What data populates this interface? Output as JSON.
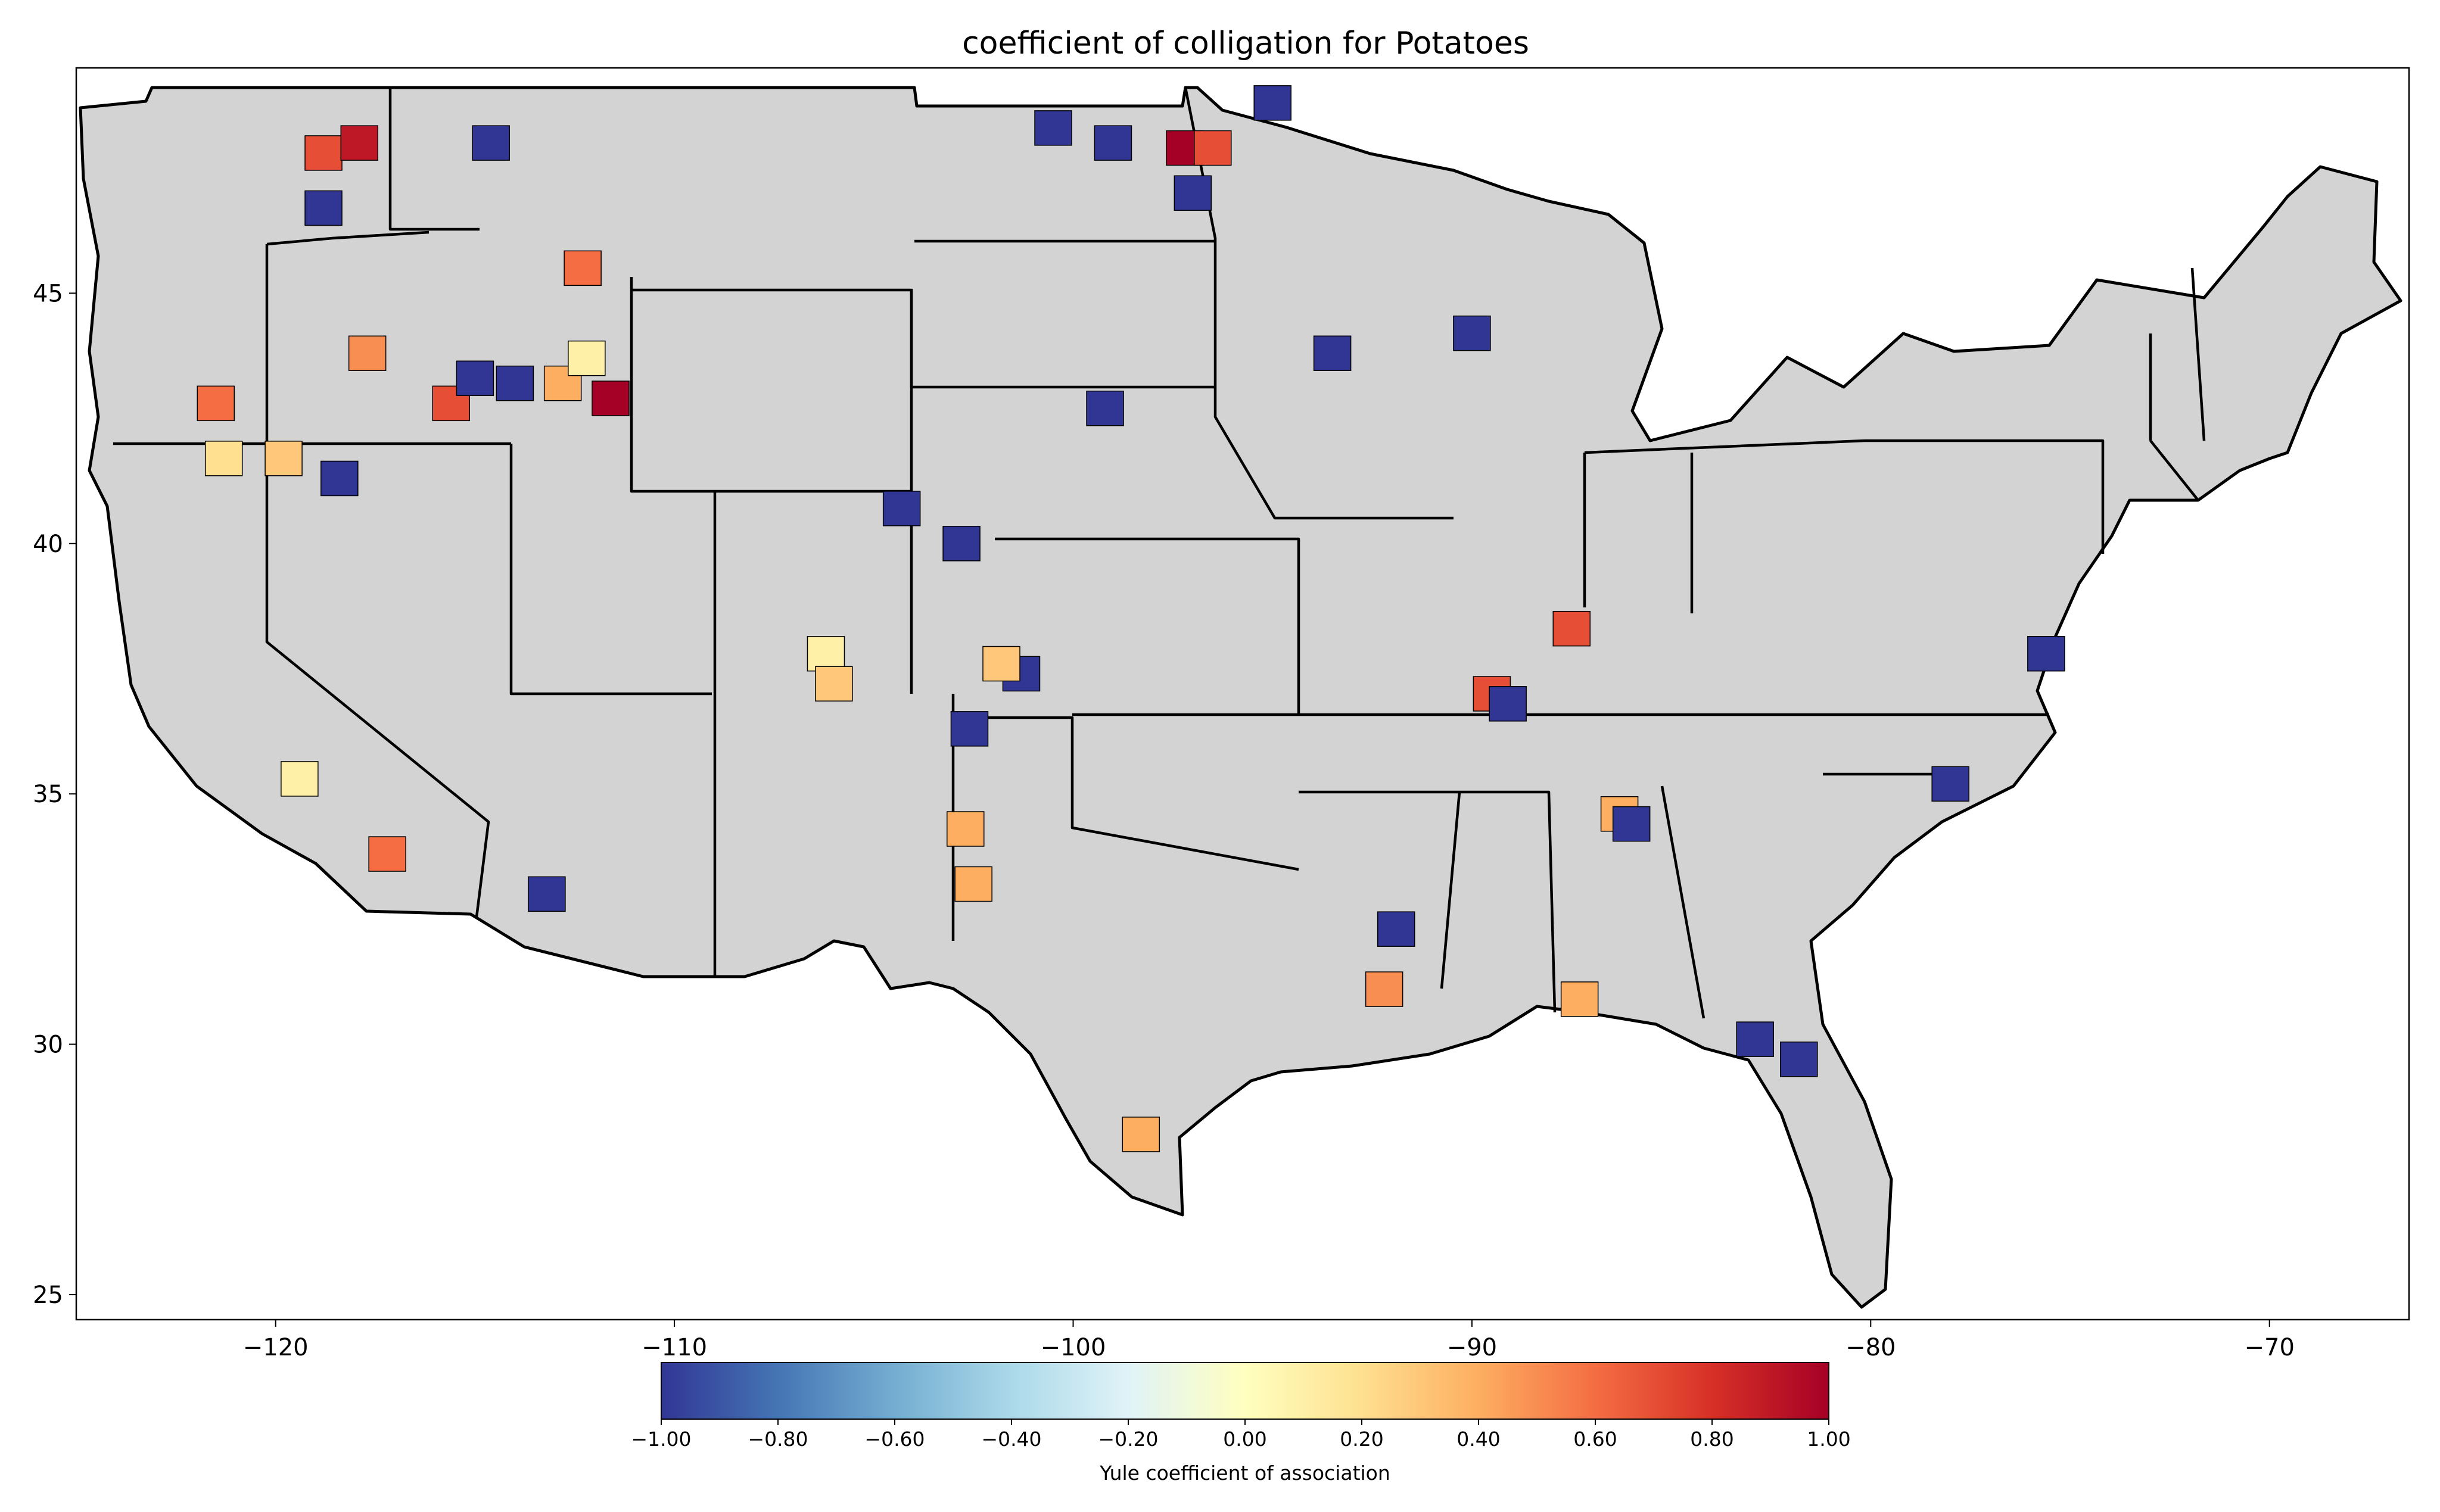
{
  "title": "coefficient of colligation for Potatoes",
  "map": {
    "region": "Contiguous United States (county level)",
    "background_fill": "#d3d3d3",
    "border_color": "#000000",
    "lon_range": [
      -125,
      -66.5
    ],
    "lat_range": [
      24.5,
      49.5
    ],
    "x_ticks": [
      "−120",
      "−110",
      "−100",
      "−90",
      "−80",
      "−70"
    ],
    "y_ticks": [
      "25",
      "30",
      "35",
      "40",
      "45"
    ]
  },
  "colorbar": {
    "label": "Yule coefficient of association",
    "colormap": "RdYlBu_r",
    "range": [
      -1.0,
      1.0
    ],
    "ticks": [
      "−1.00",
      "−0.80",
      "−0.60",
      "−0.40",
      "−0.20",
      "0.00",
      "0.20",
      "0.40",
      "0.60",
      "0.80",
      "1.00"
    ],
    "tick_values": [
      -1.0,
      -0.8,
      -0.6,
      -0.4,
      -0.2,
      0.0,
      0.2,
      0.4,
      0.6,
      0.8,
      1.0
    ],
    "colors": [
      "#313695",
      "#4575b4",
      "#74add1",
      "#abd9e9",
      "#e0f3f8",
      "#ffffbf",
      "#fee090",
      "#fdae61",
      "#f46d43",
      "#d73027",
      "#a50026"
    ]
  },
  "highlighted_counties": [
    {
      "region": "NE Washington",
      "lon": -118.8,
      "lat": 47.8,
      "value": 0.7
    },
    {
      "region": "E Washington",
      "lon": -117.9,
      "lat": 48.0,
      "value": 0.9
    },
    {
      "region": "SE Washington",
      "lon": -118.8,
      "lat": 46.7,
      "value": -1.0
    },
    {
      "region": "E Oregon",
      "lon": -117.7,
      "lat": 43.8,
      "value": 0.5
    },
    {
      "region": "S-central Oregon",
      "lon": -121.5,
      "lat": 42.8,
      "value": 0.6
    },
    {
      "region": "N California",
      "lon": -121.3,
      "lat": 41.7,
      "value": 0.2
    },
    {
      "region": "NE California",
      "lon": -119.8,
      "lat": 41.7,
      "value": 0.3
    },
    {
      "region": "NW Nevada",
      "lon": -118.4,
      "lat": 41.3,
      "value": -1.0
    },
    {
      "region": "SW Idaho",
      "lon": -115.6,
      "lat": 42.8,
      "value": 0.7
    },
    {
      "region": "S Idaho",
      "lon": -115.0,
      "lat": 43.3,
      "value": -1.0
    },
    {
      "region": "S-central Idaho",
      "lon": -114.0,
      "lat": 43.2,
      "value": -1.0
    },
    {
      "region": "SE Idaho",
      "lon": -112.8,
      "lat": 43.2,
      "value": 0.4
    },
    {
      "region": "E Idaho",
      "lon": -112.2,
      "lat": 43.7,
      "value": 0.1
    },
    {
      "region": "E Idaho border",
      "lon": -111.6,
      "lat": 42.9,
      "value": 1.0
    },
    {
      "region": "W Montana",
      "lon": -112.3,
      "lat": 45.5,
      "value": 0.6
    },
    {
      "region": "NW Montana",
      "lon": -114.6,
      "lat": 48.0,
      "value": -1.0
    },
    {
      "region": "N Dakota NE",
      "lon": -97.2,
      "lat": 47.9,
      "value": 1.0
    },
    {
      "region": "N Dakota NE 2",
      "lon": -96.5,
      "lat": 47.9,
      "value": 0.7
    },
    {
      "region": "N Dakota N",
      "lon": -100.5,
      "lat": 48.3,
      "value": -1.0
    },
    {
      "region": "N Dakota central",
      "lon": -99.0,
      "lat": 48.0,
      "value": -1.0
    },
    {
      "region": "N Dakota E",
      "lon": -97.0,
      "lat": 47.0,
      "value": -1.0
    },
    {
      "region": "Minnesota N",
      "lon": -95.0,
      "lat": 48.8,
      "value": -1.0
    },
    {
      "region": "Minnesota S",
      "lon": -93.5,
      "lat": 43.8,
      "value": -1.0
    },
    {
      "region": "Wisconsin",
      "lon": -90.0,
      "lat": 44.2,
      "value": -1.0
    },
    {
      "region": "Nebraska",
      "lon": -99.2,
      "lat": 42.7,
      "value": -1.0
    },
    {
      "region": "Colorado NE",
      "lon": -104.3,
      "lat": 40.7,
      "value": -1.0
    },
    {
      "region": "Colorado E",
      "lon": -102.8,
      "lat": 40.0,
      "value": -1.0
    },
    {
      "region": "Colorado S",
      "lon": -106.2,
      "lat": 37.8,
      "value": 0.1
    },
    {
      "region": "Colorado S2",
      "lon": -106.0,
      "lat": 37.2,
      "value": 0.3
    },
    {
      "region": "Kansas W",
      "lon": -101.3,
      "lat": 37.4,
      "value": -1.0
    },
    {
      "region": "Kansas W2",
      "lon": -101.8,
      "lat": 37.6,
      "value": 0.3
    },
    {
      "region": "Oklahoma panhandle",
      "lon": -102.6,
      "lat": 36.3,
      "value": -1.0
    },
    {
      "region": "Texas panhandle",
      "lon": -102.7,
      "lat": 34.3,
      "value": 0.4
    },
    {
      "region": "Texas panhandle S",
      "lon": -102.5,
      "lat": 33.2,
      "value": 0.4
    },
    {
      "region": "S Texas",
      "lon": -98.3,
      "lat": 28.2,
      "value": 0.4
    },
    {
      "region": "S California central",
      "lon": -119.4,
      "lat": 35.3,
      "value": 0.1
    },
    {
      "region": "S California",
      "lon": -117.2,
      "lat": 33.8,
      "value": 0.6
    },
    {
      "region": "Arizona",
      "lon": -113.2,
      "lat": 33.0,
      "value": -1.0
    },
    {
      "region": "Illinois S",
      "lon": -89.5,
      "lat": 37.0,
      "value": 0.7
    },
    {
      "region": "Kentucky W",
      "lon": -89.1,
      "lat": 36.8,
      "value": -1.0
    },
    {
      "region": "Indiana SW",
      "lon": -87.5,
      "lat": 38.3,
      "value": 0.7
    },
    {
      "region": "Alabama N",
      "lon": -86.3,
      "lat": 34.6,
      "value": 0.4
    },
    {
      "region": "Alabama N2",
      "lon": -86.0,
      "lat": 34.4,
      "value": -1.0
    },
    {
      "region": "Alabama S",
      "lon": -87.3,
      "lat": 30.9,
      "value": 0.4
    },
    {
      "region": "Louisiana N",
      "lon": -91.9,
      "lat": 32.3,
      "value": -1.0
    },
    {
      "region": "Louisiana central",
      "lon": -92.2,
      "lat": 31.1,
      "value": 0.5
    },
    {
      "region": "Florida N",
      "lon": -81.8,
      "lat": 29.7,
      "value": -1.0
    },
    {
      "region": "Florida N2",
      "lon": -82.9,
      "lat": 30.1,
      "value": -1.0
    },
    {
      "region": "North Carolina",
      "lon": -78.0,
      "lat": 35.2,
      "value": -1.0
    },
    {
      "region": "Delmarva",
      "lon": -75.6,
      "lat": 37.8,
      "value": -1.0
    }
  ]
}
